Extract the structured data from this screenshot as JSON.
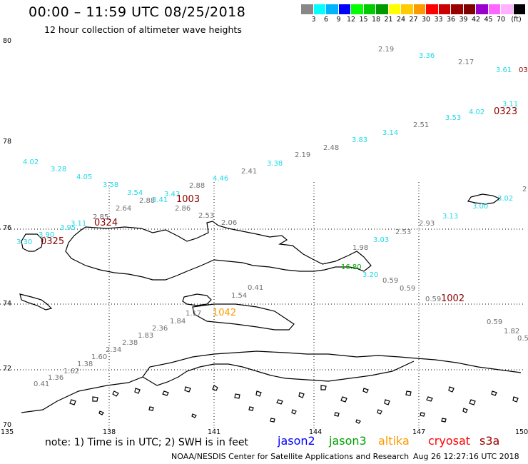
{
  "header": {
    "title": "00:00 – 11:59 UTC 08/25/2018",
    "subtitle": "12 hour collection of altimeter wave heights"
  },
  "scale": {
    "colors": [
      "#888888",
      "#00ffff",
      "#00b3ff",
      "#0000ff",
      "#00ff00",
      "#00cc00",
      "#009900",
      "#ffff00",
      "#ffcc00",
      "#ff9900",
      "#ff0000",
      "#cc0000",
      "#990000",
      "#800000",
      "#9900cc",
      "#ff66ff",
      "#ffb3ff",
      "#000000"
    ],
    "labels": [
      "3",
      "6",
      "9",
      "12",
      "15",
      "18",
      "21",
      "24",
      "27",
      "30",
      "33",
      "36",
      "39",
      "42",
      "45",
      "70",
      "(ft)"
    ]
  },
  "axes": {
    "lat_labels": [
      "80",
      "78",
      "76",
      "74",
      "72",
      "70"
    ],
    "lon_labels": [
      "135",
      "138",
      "141",
      "144",
      "147",
      "150"
    ]
  },
  "observations": [
    {
      "text": "2.19",
      "color": "#707070"
    },
    {
      "text": "3.36",
      "color": "#1fd8e8"
    },
    {
      "text": "2.17",
      "color": "#707070"
    },
    {
      "text": "3.61",
      "color": "#1fd8e8"
    },
    {
      "text": "03",
      "color": "#8b0000"
    },
    {
      "text": "3.11",
      "color": "#1fd8e8"
    },
    {
      "text": "0323",
      "color": "#8b0000"
    },
    {
      "text": "3.53",
      "color": "#1fd8e8"
    },
    {
      "text": "4.02",
      "color": "#1fd8e8"
    },
    {
      "text": "2.51",
      "color": "#707070"
    },
    {
      "text": "3.14",
      "color": "#1fd8e8"
    },
    {
      "text": "3.83",
      "color": "#1fd8e8"
    },
    {
      "text": "2.48",
      "color": "#707070"
    },
    {
      "text": "2.19",
      "color": "#707070"
    },
    {
      "text": "3.38",
      "color": "#1fd8e8"
    },
    {
      "text": "2.41",
      "color": "#707070"
    },
    {
      "text": "4.46",
      "color": "#1fd8e8"
    },
    {
      "text": "4.02",
      "color": "#1fd8e8"
    },
    {
      "text": "3.28",
      "color": "#1fd8e8"
    },
    {
      "text": "4.05",
      "color": "#1fd8e8"
    },
    {
      "text": "3.58",
      "color": "#1fd8e8"
    },
    {
      "text": "3.54",
      "color": "#1fd8e8"
    },
    {
      "text": "3.43",
      "color": "#1fd8e8"
    },
    {
      "text": "2.88",
      "color": "#707070"
    },
    {
      "text": "2.88",
      "color": "#707070"
    },
    {
      "text": "3.41",
      "color": "#1fd8e8"
    },
    {
      "text": "1003",
      "color": "#8b0000"
    },
    {
      "text": "2.64",
      "color": "#707070"
    },
    {
      "text": "2.86",
      "color": "#707070"
    },
    {
      "text": "2.53",
      "color": "#707070"
    },
    {
      "text": "2.85",
      "color": "#707070"
    },
    {
      "text": "3.11",
      "color": "#1fd8e8"
    },
    {
      "text": "0324",
      "color": "#8b0000"
    },
    {
      "text": "3.95",
      "color": "#1fd8e8"
    },
    {
      "text": "3.90",
      "color": "#1fd8e8"
    },
    {
      "text": "2.06",
      "color": "#707070"
    },
    {
      "text": "3.30",
      "color": "#1fd8e8"
    },
    {
      "text": "0325",
      "color": "#8b0000"
    },
    {
      "text": "2.93",
      "color": "#707070"
    },
    {
      "text": "3.13",
      "color": "#1fd8e8"
    },
    {
      "text": "3.00",
      "color": "#1fd8e8"
    },
    {
      "text": "3.02",
      "color": "#1fd8e8"
    },
    {
      "text": "2",
      "color": "#707070"
    },
    {
      "text": "2.53",
      "color": "#707070"
    },
    {
      "text": "3.03",
      "color": "#1fd8e8"
    },
    {
      "text": "1.98",
      "color": "#707070"
    },
    {
      "text": "16.80",
      "color": "#00b000"
    },
    {
      "text": "3.20",
      "color": "#1fd8e8"
    },
    {
      "text": "0.59",
      "color": "#707070"
    },
    {
      "text": "0.59",
      "color": "#707070"
    },
    {
      "text": "0.41",
      "color": "#707070"
    },
    {
      "text": "1.54",
      "color": "#707070"
    },
    {
      "text": "0.59",
      "color": "#707070"
    },
    {
      "text": "1002",
      "color": "#8b0000"
    },
    {
      "text": "1.17",
      "color": "#707070"
    },
    {
      "text": "1042",
      "color": "#ff9900"
    },
    {
      "text": "1.84",
      "color": "#707070"
    },
    {
      "text": "2.36",
      "color": "#707070"
    },
    {
      "text": "1.83",
      "color": "#707070"
    },
    {
      "text": "2.38",
      "color": "#707070"
    },
    {
      "text": "2.34",
      "color": "#707070"
    },
    {
      "text": "1.60",
      "color": "#707070"
    },
    {
      "text": "1.38",
      "color": "#707070"
    },
    {
      "text": "1.62",
      "color": "#707070"
    },
    {
      "text": "1.36",
      "color": "#707070"
    },
    {
      "text": "0.41",
      "color": "#707070"
    },
    {
      "text": "0.59",
      "color": "#707070"
    },
    {
      "text": "1.82",
      "color": "#707070"
    },
    {
      "text": "0.5",
      "color": "#707070"
    }
  ],
  "footer": {
    "note": "note: 1) Time is in UTC; 2) SWH is in feet",
    "legend": [
      {
        "label": "jason2",
        "color": "#0000ff"
      },
      {
        "label": "jason3",
        "color": "#00a000"
      },
      {
        "label": "altika",
        "color": "#ff9900"
      },
      {
        "label": "cryosat",
        "color": "#ff0000"
      },
      {
        "label": "s3a",
        "color": "#990000"
      }
    ],
    "credit": "NOAA/NESDIS Center for Satellite Applications and Research",
    "timestamp": "Aug 26 12:27:16 UTC 2018"
  }
}
